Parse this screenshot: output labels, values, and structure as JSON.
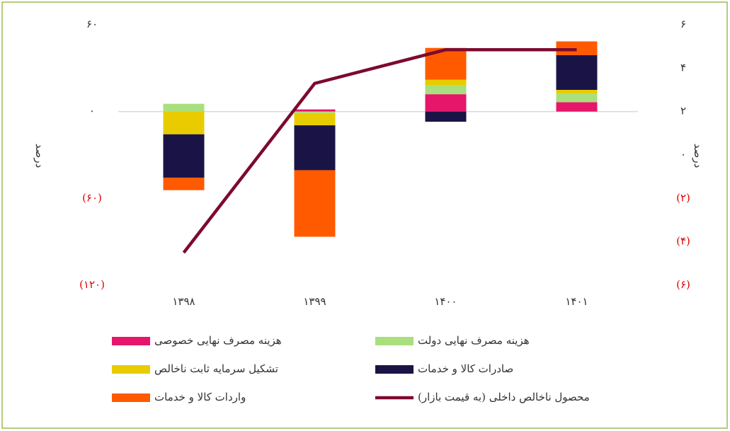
{
  "chart_data": {
    "type": "bar",
    "categories": [
      "۱۳۹۸",
      "۱۳۹۹",
      "۱۴۰۰",
      "۱۴۰۱"
    ],
    "ylabel": "درصد",
    "y2label": "درصد",
    "ylim": [
      -120,
      60
    ],
    "yticks": [
      {
        "value": 60,
        "label": "۶۰"
      },
      {
        "value": 0,
        "label": "۰"
      },
      {
        "value": -60,
        "label": "(۶۰)"
      },
      {
        "value": -120,
        "label": "(۱۲۰)"
      }
    ],
    "y2lim": [
      -6,
      6
    ],
    "y2ticks": [
      {
        "value": 6,
        "label": "۶"
      },
      {
        "value": 4,
        "label": "۴"
      },
      {
        "value": 2,
        "label": "۲"
      },
      {
        "value": 0,
        "label": "۰"
      },
      {
        "value": -2,
        "label": "(۲)"
      },
      {
        "value": -4,
        "label": "(۴)"
      },
      {
        "value": -6,
        "label": "(۶)"
      }
    ],
    "stacked": true,
    "series": [
      {
        "name": "هزینه مصرف نهایی خصوصی",
        "color": "#e6176b",
        "values": [
          0,
          1.5,
          12,
          6.5
        ]
      },
      {
        "name": "هزینه مصرف نهایی دولت",
        "color": "#a9df7c",
        "values": [
          5.4,
          -1,
          6,
          6
        ]
      },
      {
        "name": "تشکیل سرمایه ثابت ناخالص",
        "color": "#e8cc00",
        "values": [
          -15.7,
          -8.5,
          4,
          2.5
        ]
      },
      {
        "name": "صادرات کالا و خدمات",
        "color": "#1a1446",
        "values": [
          -30,
          -31,
          -7,
          24
        ]
      },
      {
        "name": "واردات کالا و خدمات",
        "color": "#ff5a00",
        "values": [
          -8.6,
          -46,
          22,
          9.5
        ]
      },
      {
        "name": "محصول ناخالص داخلی (به قیمت بازار)",
        "color": "#7d0a2e",
        "type": "line",
        "axis": "y2",
        "values": [
          -4.5,
          3.3,
          4.85,
          4.85
        ]
      }
    ]
  }
}
